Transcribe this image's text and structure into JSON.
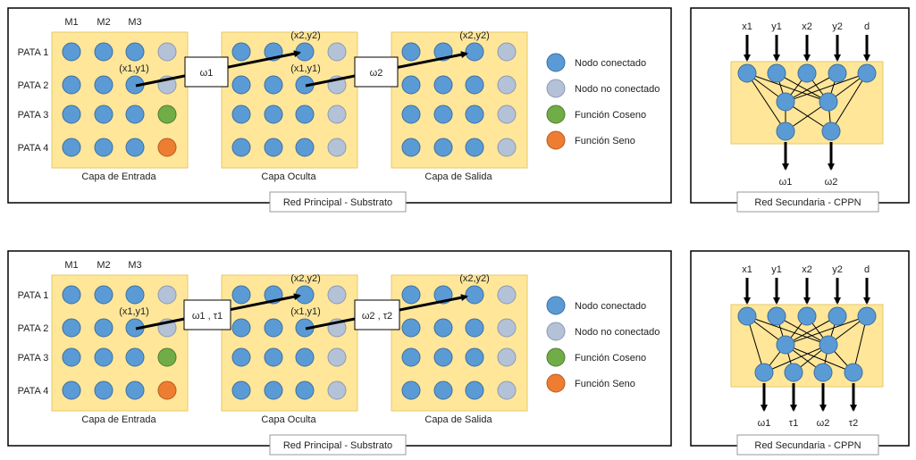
{
  "panels": [
    {
      "main_caption": "Red Principal - Substrato",
      "secondary_caption": "Red Secundaria - CPPN",
      "columns": [
        "M1",
        "M2",
        "M3"
      ],
      "rows": [
        "PATA 1",
        "PATA 2",
        "PATA 3",
        "PATA 4"
      ],
      "layers": [
        "Capa de Entrada",
        "Capa Oculta",
        "Capa de Salida"
      ],
      "labels": {
        "xy1": "(x1,y1)",
        "xy2": "(x2,y2)"
      },
      "weights": [
        "ω1",
        "ω2"
      ],
      "legend": [
        "Nodo conectado",
        "Nodo no conectado",
        "Función Coseno",
        "Función Seno"
      ],
      "cppn_inputs": [
        "x1",
        "y1",
        "x2",
        "y2",
        "d"
      ],
      "cppn_outputs": [
        "ω1",
        "ω2"
      ]
    },
    {
      "main_caption": "Red Principal - Substrato",
      "secondary_caption": "Red Secundaria - CPPN",
      "columns": [
        "M1",
        "M2",
        "M3"
      ],
      "rows": [
        "PATA 1",
        "PATA 2",
        "PATA 3",
        "PATA 4"
      ],
      "layers": [
        "Capa de Entrada",
        "Capa Oculta",
        "Capa de Salida"
      ],
      "labels": {
        "xy1": "(x1,y1)",
        "xy2": "(x2,y2)"
      },
      "weights": [
        "ω1 , τ1",
        "ω2 , τ2"
      ],
      "legend": [
        "Nodo conectado",
        "Nodo no conectado",
        "Función Coseno",
        "Función Seno"
      ],
      "cppn_inputs": [
        "x1",
        "y1",
        "x2",
        "y2",
        "d"
      ],
      "cppn_outputs": [
        "ω1",
        "τ1",
        "ω2",
        "τ2"
      ]
    }
  ],
  "colors": {
    "connected": "#5b9bd5",
    "not_connected": "#b4c2d8",
    "cosine": "#70ad47",
    "sine": "#ed7d31",
    "layer_fill": "#ffe699"
  }
}
